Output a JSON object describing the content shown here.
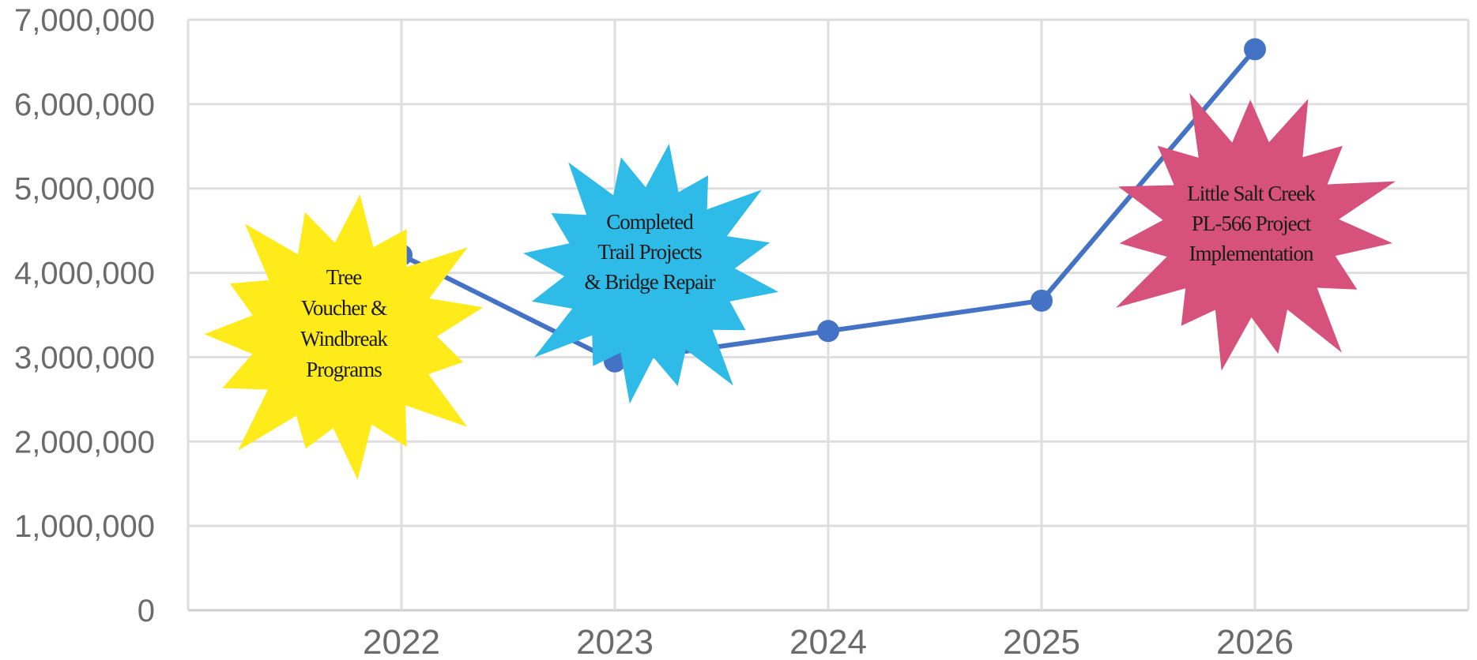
{
  "chart_data": {
    "type": "line",
    "x": [
      "2022",
      "2023",
      "2024",
      "2025",
      "2026"
    ],
    "series": [
      {
        "values": [
          4210000,
          2950000,
          3310000,
          3670000,
          6650000
        ]
      }
    ],
    "ylim": [
      0,
      7000000
    ],
    "yticks": [
      "0",
      "1,000,000",
      "2,000,000",
      "3,000,000",
      "4,000,000",
      "5,000,000",
      "6,000,000",
      "7,000,000"
    ],
    "grid": true,
    "line_color": "#4472c4",
    "annotations": [
      {
        "lines": [
          "Tree",
          "Voucher &",
          "Windbreak",
          "Programs"
        ],
        "color": "#ffeb1a",
        "near": "2022"
      },
      {
        "lines": [
          "Completed",
          "Trail Projects",
          "& Bridge Repair"
        ],
        "color": "#2ebbe8",
        "near": "2023"
      },
      {
        "lines": [
          "Little Salt Creek",
          "PL-566 Project",
          "Implementation"
        ],
        "color": "#d6527c",
        "near": "2026"
      }
    ]
  }
}
